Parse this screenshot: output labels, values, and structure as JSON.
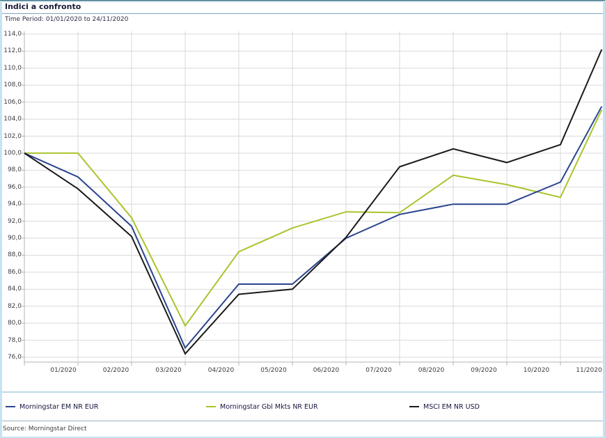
{
  "header": {
    "title": "Indici a confronto",
    "subtitle": "Time Period: 01/01/2020 to 24/11/2020"
  },
  "footer": {
    "source": "Source: Morningstar Direct"
  },
  "colors": {
    "series_blue": "#2a4390",
    "series_green": "#a9c42d",
    "series_black": "#1a1a1a",
    "gridline": "#d9d9d9",
    "axis": "#b3b3b3",
    "accent_lightblue": "#bcd9e8",
    "title_text": "#1a1a38"
  },
  "chart_data": {
    "type": "line",
    "title": "Indici a confronto",
    "time_period": "01/01/2020 to 24/11/2020",
    "grid": true,
    "legend_position": "bottom",
    "ylim": [
      76,
      114
    ],
    "y_tick_step": 2,
    "y_tick_labels": [
      "114,0",
      "112,0",
      "110,0",
      "108,0",
      "106,0",
      "104,0",
      "102,0",
      "100,0",
      "98,0",
      "96,0",
      "94,0",
      "92,0",
      "90,0",
      "88,0",
      "86,0",
      "84,0",
      "82,0",
      "80,0",
      "78,0",
      "76,0"
    ],
    "x_tick_labels": [
      "01/2020",
      "02/2020",
      "03/2020",
      "04/2020",
      "05/2020",
      "06/2020",
      "07/2020",
      "08/2020",
      "09/2020",
      "10/2020",
      "11/2020"
    ],
    "x_months": [
      0,
      1,
      2,
      3,
      4,
      5,
      6,
      7,
      8,
      9,
      10,
      10.77
    ],
    "x_point_dates": [
      "01/01/2020",
      "31/01/2020",
      "29/02/2020",
      "31/03/2020",
      "30/04/2020",
      "31/05/2020",
      "30/06/2020",
      "31/07/2020",
      "31/08/2020",
      "30/09/2020",
      "31/10/2020",
      "24/11/2020"
    ],
    "series": [
      {
        "name": "Morningstar EM NR EUR",
        "color": "#2a4390",
        "values": [
          100,
          97.2,
          91.4,
          77.1,
          84.6,
          84.6,
          90.0,
          92.8,
          94.0,
          94.0,
          96.6,
          105.5
        ]
      },
      {
        "name": "Morningstar Gbl Mkts NR EUR",
        "color": "#a9c42d",
        "values": [
          100,
          100.0,
          92.4,
          79.7,
          88.4,
          91.2,
          93.1,
          93.0,
          97.4,
          96.3,
          94.8,
          105.1
        ]
      },
      {
        "name": "MSCI EM NR USD",
        "color": "#1a1a1a",
        "values": [
          100,
          95.8,
          90.2,
          76.4,
          83.4,
          84.0,
          90.1,
          98.4,
          100.5,
          98.9,
          101.0,
          112.2
        ]
      }
    ]
  }
}
